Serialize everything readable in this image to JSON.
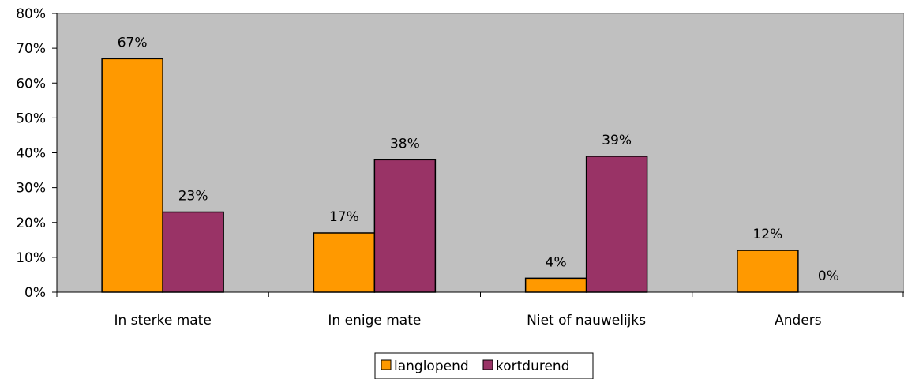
{
  "chart_data": {
    "type": "bar",
    "title": "",
    "xlabel": "",
    "ylabel": "",
    "ylim": [
      0,
      80
    ],
    "yticks": [
      0,
      10,
      20,
      30,
      40,
      50,
      60,
      70,
      80
    ],
    "ytick_labels": [
      "0%",
      "10%",
      "20%",
      "30%",
      "40%",
      "50%",
      "60%",
      "70%",
      "80%"
    ],
    "categories": [
      "In sterke mate",
      "In enige mate",
      "Niet of nauwelijks",
      "Anders"
    ],
    "series": [
      {
        "name": "langlopend",
        "color": "#FF9900",
        "values": [
          67,
          17,
          4,
          12
        ],
        "labels": [
          "67%",
          "17%",
          "4%",
          "12%"
        ]
      },
      {
        "name": "kortdurend",
        "color": "#993366",
        "values": [
          23,
          38,
          39,
          0
        ],
        "labels": [
          "23%",
          "38%",
          "39%",
          "0%"
        ]
      }
    ],
    "grid": false,
    "plot_background": "#C0C0C0",
    "legend_position": "bottom"
  }
}
